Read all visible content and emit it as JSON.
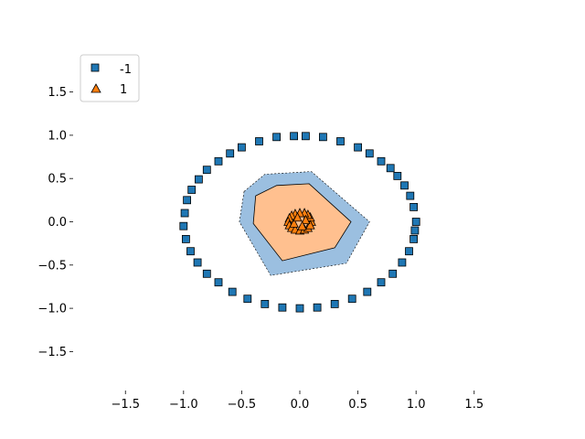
{
  "chart_data": {
    "type": "scatter",
    "title": "",
    "xlabel": "",
    "ylabel": "",
    "xlim": [
      -1.95,
      1.95
    ],
    "ylim": [
      -1.95,
      1.95
    ],
    "xticks": [
      -1.5,
      -1.0,
      -0.5,
      0.0,
      0.5,
      1.0,
      1.5
    ],
    "yticks": [
      -1.5,
      -1.0,
      -0.5,
      0.0,
      0.5,
      1.0,
      1.5
    ],
    "xtick_labels": [
      "−1.5",
      "−1.0",
      "−0.5",
      "0.0",
      "0.5",
      "1.0",
      "1.5"
    ],
    "ytick_labels": [
      "−1.5",
      "−1.0",
      "−0.5",
      "0.0",
      "0.5",
      "1.0",
      "1.5"
    ],
    "grid": false,
    "legend_position": "top-left",
    "legend": [
      {
        "label": "-1",
        "marker": "square",
        "color": "#1f77b4"
      },
      {
        "label": "1",
        "marker": "triangle",
        "color": "#ff7f0e"
      }
    ],
    "decision_regions": [
      {
        "class": "-1",
        "color": "#9bbfe0",
        "polygon": [
          [
            -0.48,
            0.35
          ],
          [
            -0.3,
            0.55
          ],
          [
            0.1,
            0.58
          ],
          [
            0.6,
            0.0
          ],
          [
            0.4,
            -0.48
          ],
          [
            -0.25,
            -0.62
          ],
          [
            -0.52,
            0.0
          ]
        ]
      },
      {
        "class": "1",
        "color": "#ffc08f",
        "polygon": [
          [
            -0.38,
            0.3
          ],
          [
            -0.2,
            0.42
          ],
          [
            0.08,
            0.44
          ],
          [
            0.44,
            0.0
          ],
          [
            0.3,
            -0.3
          ],
          [
            -0.15,
            -0.45
          ],
          [
            -0.4,
            -0.02
          ]
        ]
      }
    ],
    "series": [
      {
        "name": "-1",
        "marker": "square",
        "color": "#1f77b4",
        "points": [
          [
            1.0,
            0.0
          ],
          [
            0.98,
            0.17
          ],
          [
            0.95,
            0.3
          ],
          [
            0.9,
            0.42
          ],
          [
            0.84,
            0.53
          ],
          [
            0.78,
            0.62
          ],
          [
            0.7,
            0.7
          ],
          [
            0.6,
            0.79
          ],
          [
            0.5,
            0.86
          ],
          [
            0.35,
            0.93
          ],
          [
            0.2,
            0.98
          ],
          [
            0.05,
            0.99
          ],
          [
            -0.05,
            0.99
          ],
          [
            -0.2,
            0.98
          ],
          [
            -0.35,
            0.93
          ],
          [
            -0.5,
            0.86
          ],
          [
            -0.6,
            0.79
          ],
          [
            -0.7,
            0.7
          ],
          [
            -0.8,
            0.6
          ],
          [
            -0.87,
            0.49
          ],
          [
            -0.93,
            0.37
          ],
          [
            -0.97,
            0.25
          ],
          [
            -0.99,
            0.1
          ],
          [
            -1.0,
            -0.05
          ],
          [
            -0.98,
            -0.2
          ],
          [
            -0.94,
            -0.34
          ],
          [
            -0.88,
            -0.47
          ],
          [
            -0.8,
            -0.6
          ],
          [
            -0.7,
            -0.7
          ],
          [
            -0.58,
            -0.81
          ],
          [
            -0.45,
            -0.89
          ],
          [
            -0.3,
            -0.95
          ],
          [
            -0.15,
            -0.99
          ],
          [
            0.0,
            -1.0
          ],
          [
            0.15,
            -0.99
          ],
          [
            0.3,
            -0.95
          ],
          [
            0.45,
            -0.89
          ],
          [
            0.58,
            -0.81
          ],
          [
            0.7,
            -0.7
          ],
          [
            0.8,
            -0.6
          ],
          [
            0.88,
            -0.47
          ],
          [
            0.94,
            -0.34
          ],
          [
            0.98,
            -0.2
          ],
          [
            0.99,
            -0.1
          ]
        ]
      },
      {
        "name": "1",
        "marker": "triangle",
        "color": "#ff7f0e",
        "points": [
          [
            0.1,
            0.0
          ],
          [
            0.09,
            0.05
          ],
          [
            0.07,
            0.08
          ],
          [
            0.04,
            0.1
          ],
          [
            0.0,
            0.1
          ],
          [
            -0.04,
            0.09
          ],
          [
            -0.07,
            0.07
          ],
          [
            -0.09,
            0.04
          ],
          [
            -0.1,
            0.0
          ],
          [
            -0.09,
            -0.04
          ],
          [
            -0.07,
            -0.07
          ],
          [
            -0.04,
            -0.09
          ],
          [
            0.0,
            -0.1
          ],
          [
            0.04,
            -0.09
          ],
          [
            0.07,
            -0.07
          ],
          [
            0.09,
            -0.04
          ],
          [
            0.05,
            0.02
          ],
          [
            -0.05,
            -0.02
          ],
          [
            0.02,
            -0.05
          ],
          [
            -0.02,
            0.05
          ]
        ]
      }
    ]
  }
}
